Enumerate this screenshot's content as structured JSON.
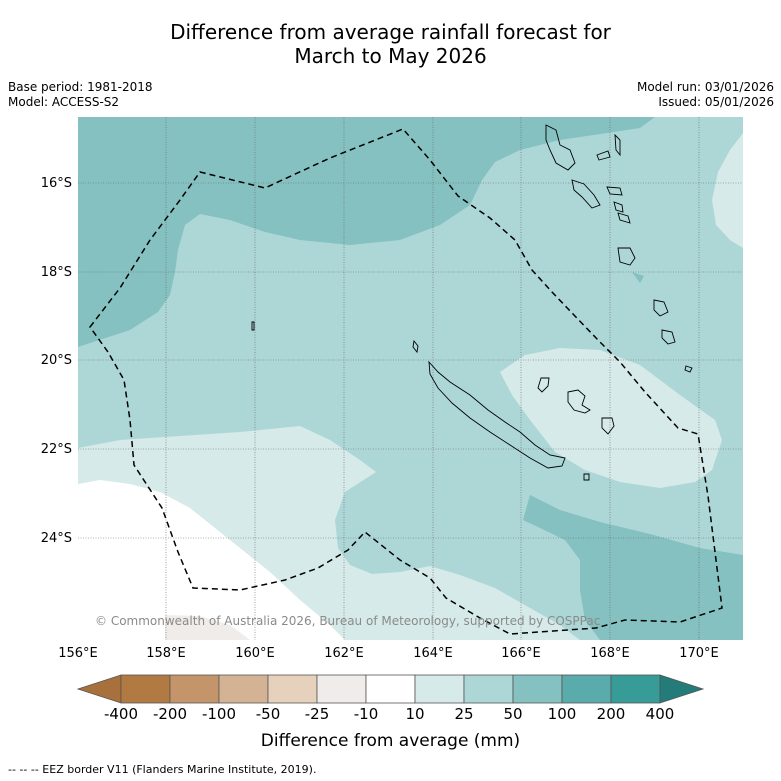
{
  "title": {
    "line1": "Difference from average rainfall forecast for",
    "line2": "March to May 2026"
  },
  "meta": {
    "base_period": "Base period: 1981-2018",
    "model": "Model: ACCESS-S2",
    "model_run": "Model run: 03/01/2026",
    "issued": "Issued: 05/01/2026"
  },
  "map": {
    "lat_labels": [
      "16°S",
      "18°S",
      "20°S",
      "22°S",
      "24°S"
    ],
    "lon_labels": [
      "156°E",
      "158°E",
      "160°E",
      "162°E",
      "164°E",
      "166°E",
      "168°E",
      "170°E"
    ],
    "credit": "© Commonwealth of Australia 2026, Bureau of Meteorology, supported by COSPPac",
    "footnote": "-- -- -- EEZ border V11 (Flanders Marine Institute, 2019).",
    "regions": [
      {
        "name": "north-west",
        "category_mm": "50 to 100"
      },
      {
        "name": "central band",
        "category_mm": "25 to 50"
      },
      {
        "name": "south-west",
        "category_mm": "10 to 25"
      },
      {
        "name": "far south-west",
        "category_mm": "-10 to 10"
      },
      {
        "name": "east of New Caledonia",
        "category_mm": "10 to 25"
      },
      {
        "name": "south-east",
        "category_mm": "50 to 100"
      }
    ]
  },
  "colorbar": {
    "label": "Difference from average (mm)",
    "ticks": [
      "-400",
      "-200",
      "-100",
      "-50",
      "-25",
      "-10",
      "10",
      "25",
      "50",
      "100",
      "200",
      "400"
    ],
    "colors": [
      "#a8703a",
      "#b07a42",
      "#c4956a",
      "#d4b394",
      "#e6d1bd",
      "#f0ece9",
      "#ffffff",
      "#d6eae9",
      "#add7d6",
      "#84c1c0",
      "#59acab",
      "#379c98",
      "#237c79"
    ]
  }
}
